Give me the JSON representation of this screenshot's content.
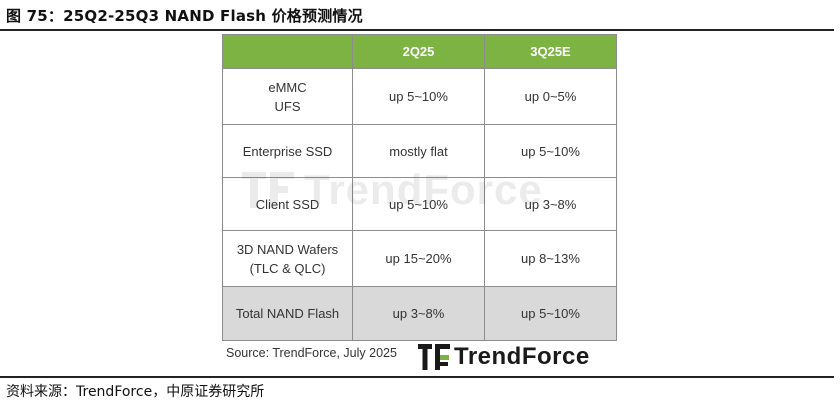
{
  "figure": {
    "title": "图 75：25Q2-25Q3 NAND Flash 价格预测情况",
    "source": "资料来源：TrendForce，中原证券研究所"
  },
  "table": {
    "headers": [
      "",
      "2Q25",
      "3Q25E"
    ],
    "rows": [
      {
        "category_line1": "eMMC",
        "category_line2": "UFS",
        "q2": "up 5~10%",
        "q3": "up 0~5%"
      },
      {
        "category": "Enterprise SSD",
        "q2": "mostly flat",
        "q3": "up 5~10%"
      },
      {
        "category": "Client SSD",
        "q2": "up 5~10%",
        "q3": "up 3~8%"
      },
      {
        "category_line1": "3D NAND Wafers",
        "category_line2": "(TLC & QLC)",
        "q2": "up 15~20%",
        "q3": "up 8~13%"
      },
      {
        "category": "Total NAND Flash",
        "q2": "up 3~8%",
        "q3": "up 5~10%"
      }
    ],
    "header_color": "#7cb342",
    "total_row_color": "#d9d9d9"
  },
  "chart_source": "Source: TrendForce, July 2025",
  "brand": {
    "name": "TrendForce",
    "logo_icon": "trendforce-logo-icon"
  },
  "watermark": {
    "text": "TrendForce"
  }
}
